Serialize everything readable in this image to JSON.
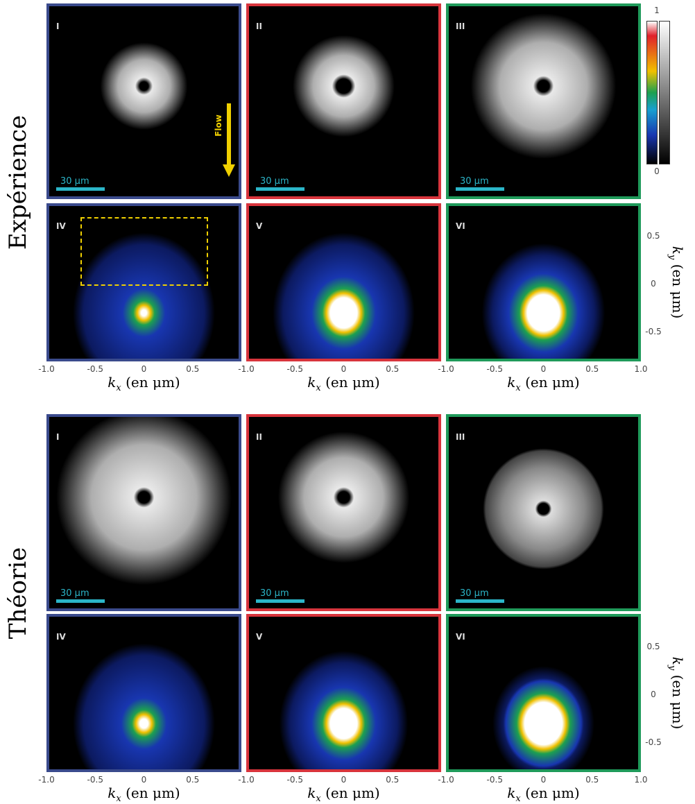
{
  "sections": [
    {
      "title": "Expérience",
      "panels": [
        {
          "label": "I",
          "scale_bar": "30 µm"
        },
        {
          "label": "II",
          "scale_bar": "30 µm"
        },
        {
          "label": "III",
          "scale_bar": "30 µm"
        },
        {
          "label": "IV"
        },
        {
          "label": "V"
        },
        {
          "label": "VI"
        }
      ],
      "x_ticks": [
        [
          "-1.0",
          "-0.5",
          "0",
          "0.5"
        ],
        [
          "-1.0",
          "-0.5",
          "0",
          "0.5"
        ],
        [
          "-1.0",
          "-0.5",
          "0",
          "0.5",
          "1.0"
        ]
      ],
      "y_ticks": [
        "0.5",
        "0",
        "-0.5"
      ]
    },
    {
      "title": "Théorie",
      "panels": [
        {
          "label": "I",
          "scale_bar": "30 µm"
        },
        {
          "label": "II",
          "scale_bar": "30 µm"
        },
        {
          "label": "III",
          "scale_bar": "30 µm"
        },
        {
          "label": "IV"
        },
        {
          "label": "V"
        },
        {
          "label": "VI"
        }
      ],
      "x_ticks": [
        [
          "-1.0",
          "-0.5",
          "0",
          "0.5"
        ],
        [
          "-1.0",
          "-0.5",
          "0",
          "0.5"
        ],
        [
          "-1.0",
          "-0.5",
          "0",
          "0.5",
          "1.0"
        ]
      ],
      "y_ticks": [
        "0.5",
        "0",
        "-0.5"
      ]
    }
  ],
  "x_label": {
    "symbol": "k",
    "subscript": "x",
    "text": "(en μm)"
  },
  "y_label": {
    "symbol": "k",
    "subscript": "y",
    "text": "(en μm)"
  },
  "flow_label": "Flow",
  "colorbar": {
    "max": "1",
    "min": "0"
  }
}
